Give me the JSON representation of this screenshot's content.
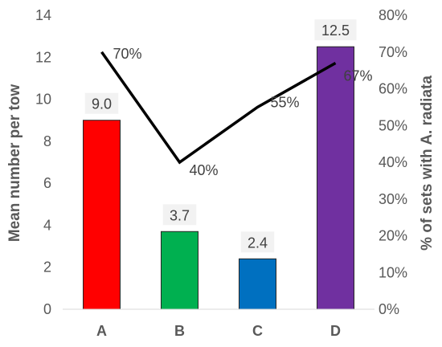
{
  "chart_data": {
    "type": "bar",
    "categories": [
      "A",
      "B",
      "C",
      "D"
    ],
    "ylabel": "Mean number per tow",
    "y2label": "% of sets with A. radiata",
    "ylim": [
      0,
      14
    ],
    "y_ticks": [
      "0",
      "2",
      "4",
      "6",
      "8",
      "10",
      "12",
      "14"
    ],
    "y2lim": [
      0,
      80
    ],
    "y2_ticks": [
      "0%",
      "10%",
      "20%",
      "30%",
      "40%",
      "50%",
      "60%",
      "70%",
      "80%"
    ],
    "grid": false,
    "bars": {
      "values": [
        9.0,
        3.7,
        2.4,
        12.5
      ],
      "labels": [
        "9.0",
        "3.7",
        "2.4",
        "12.5"
      ],
      "colors": [
        "#ff0000",
        "#00b050",
        "#0070c0",
        "#7030a0"
      ]
    },
    "line": {
      "axis": "secondary",
      "values": [
        70,
        40,
        55,
        67
      ],
      "labels": [
        "70%",
        "40%",
        "55%",
        "67%"
      ],
      "color": "#000000"
    }
  }
}
